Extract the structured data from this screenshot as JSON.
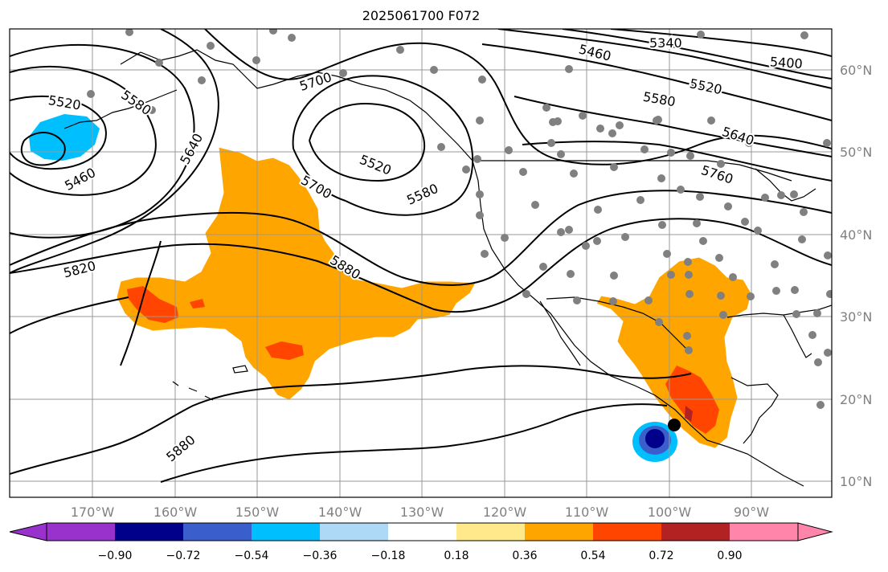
{
  "title": "2025061700 F072",
  "map": {
    "lon_ticks": [
      "170°W",
      "160°W",
      "150°W",
      "140°W",
      "130°W",
      "120°W",
      "110°W",
      "100°W",
      "90°W"
    ],
    "lat_ticks": [
      "60°N",
      "50°N",
      "40°N",
      "30°N",
      "20°N",
      "10°N"
    ],
    "contour_labels": [
      "5340",
      "5400",
      "5460",
      "5520",
      "5580",
      "5640",
      "5760",
      "5700",
      "5520",
      "5580",
      "5640",
      "5460",
      "5520",
      "5580",
      "5700",
      "5820",
      "5880",
      "5880"
    ],
    "colors": {
      "coastline": "#000000",
      "gridline": "#999999",
      "contour": "#000000",
      "station_dot": "#808080",
      "marker": "#000000"
    }
  },
  "colorbar": {
    "tick_labels": [
      "−0.90",
      "−0.72",
      "−0.54",
      "−0.36",
      "−0.18",
      "0.18",
      "0.36",
      "0.54",
      "0.72",
      "0.90"
    ],
    "colors": [
      "#9932cc",
      "#00008b",
      "#3a5fcd",
      "#00bfff",
      "#add8f6",
      "#ffffff",
      "#ffe98a",
      "#ffa500",
      "#ff4500",
      "#b22222",
      "#ff85aa"
    ]
  }
}
